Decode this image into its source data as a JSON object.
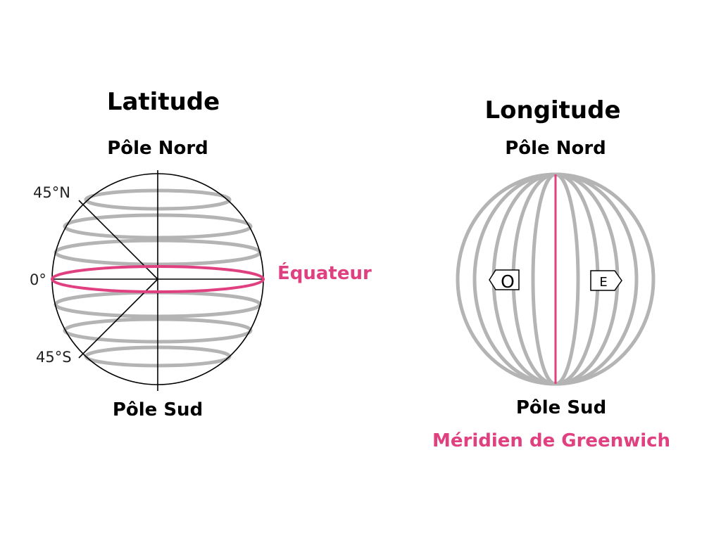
{
  "latitude": {
    "title": "Latitude",
    "north_label": "Pôle Nord",
    "south_label": "Pôle Sud",
    "equator_label": "Équateur",
    "degree_labels": {
      "north": "45°N",
      "zero": "0°",
      "south": "45°S"
    }
  },
  "longitude": {
    "title": "Longitude",
    "north_label": "Pôle Nord",
    "south_label": "Pôle Sud",
    "meridian_label": "Méridien de Greenwich",
    "west_label": "O",
    "east_label": "E"
  },
  "colors": {
    "accent": "#e0407f",
    "grid": "#b4b4b4",
    "outline": "#000000"
  }
}
